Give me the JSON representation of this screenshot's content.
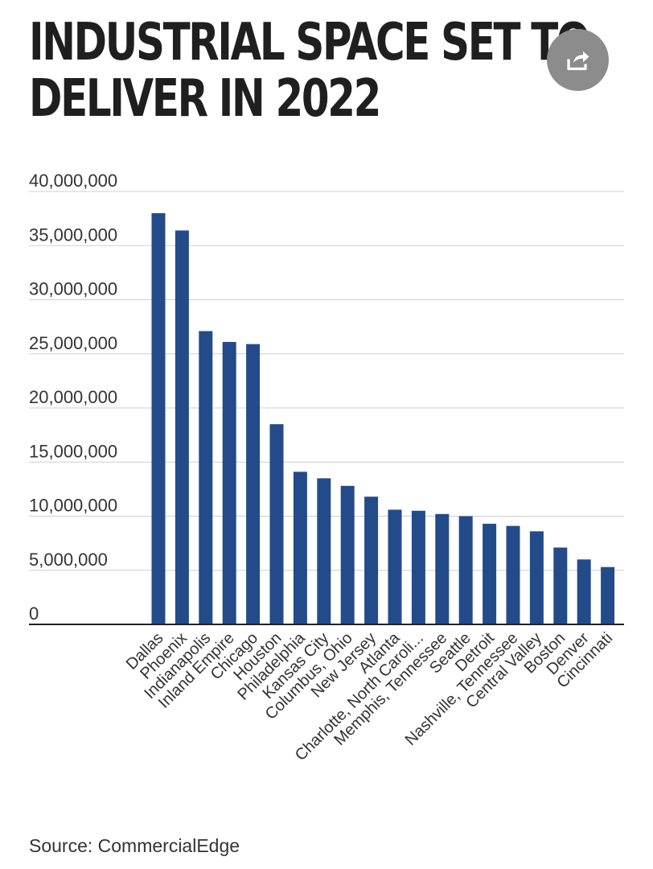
{
  "header": {
    "title_line1": "INDUSTRIAL SPACE SET TO",
    "title_line2": "DELIVER IN 2022"
  },
  "share": {
    "icon": "share-icon"
  },
  "source": "Source: CommercialEdge",
  "chart_data": {
    "type": "bar",
    "title": "INDUSTRIAL SPACE SET TO DELIVER IN 2022",
    "xlabel": "",
    "ylabel": "",
    "ylim": [
      0,
      40000000
    ],
    "yticks": [
      "0",
      "5,000,000",
      "10,000,000",
      "15,000,000",
      "20,000,000",
      "25,000,000",
      "30,000,000",
      "35,000,000",
      "40,000,000"
    ],
    "grid": true,
    "bar_color": "#234b8a",
    "categories": [
      "Dallas",
      "Phoenix",
      "Indianapolis",
      "Inland Empire",
      "Chicago",
      "Houston",
      "Philadelphia",
      "Kansas City",
      "Columbus, Ohio",
      "New Jersey",
      "Atlanta",
      "Charlotte, North Caroli...",
      "Memphis, Tennessee",
      "Seattle",
      "Detroit",
      "Nashville, Tennessee",
      "Central Valley",
      "Boston",
      "Denver",
      "Cincinnati"
    ],
    "values": [
      38000000,
      36400000,
      27100000,
      26100000,
      25900000,
      18500000,
      14100000,
      13500000,
      12800000,
      11800000,
      10600000,
      10500000,
      10200000,
      10000000,
      9300000,
      9100000,
      8600000,
      7100000,
      6000000,
      5300000
    ]
  }
}
